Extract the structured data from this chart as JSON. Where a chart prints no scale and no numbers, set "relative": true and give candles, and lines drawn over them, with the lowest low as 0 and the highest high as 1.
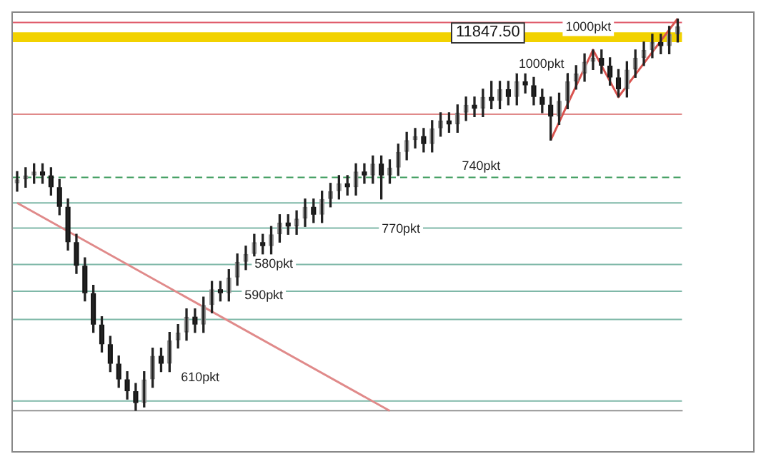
{
  "chart_data": {
    "type": "candlestick",
    "relative": true,
    "grid": false,
    "legend": false,
    "categories": [
      null,
      null,
      null,
      null,
      null,
      null,
      null,
      null,
      null,
      null,
      null,
      null,
      null,
      null,
      null,
      null,
      null,
      null,
      null,
      null,
      null,
      null,
      null,
      null,
      null,
      null,
      null,
      null,
      null,
      null,
      null,
      null,
      null,
      null,
      null,
      null,
      null,
      null,
      null,
      null,
      null,
      null,
      null,
      null,
      null,
      null,
      null,
      null,
      null,
      null,
      null,
      null,
      null,
      null,
      null,
      null,
      null,
      null,
      null,
      null,
      null,
      null,
      null,
      null,
      null,
      null,
      null,
      null,
      null,
      null,
      null,
      null,
      null,
      null,
      null,
      null,
      null,
      null,
      null
    ],
    "ohlc": [
      [
        0.58,
        0.61,
        0.56,
        0.59
      ],
      [
        0.59,
        0.62,
        0.57,
        0.6
      ],
      [
        0.6,
        0.63,
        0.58,
        0.61
      ],
      [
        0.61,
        0.63,
        0.58,
        0.6
      ],
      [
        0.6,
        0.62,
        0.55,
        0.57
      ],
      [
        0.57,
        0.59,
        0.5,
        0.52
      ],
      [
        0.52,
        0.54,
        0.41,
        0.43
      ],
      [
        0.43,
        0.45,
        0.35,
        0.37
      ],
      [
        0.37,
        0.39,
        0.28,
        0.3
      ],
      [
        0.3,
        0.32,
        0.2,
        0.22
      ],
      [
        0.22,
        0.24,
        0.15,
        0.17
      ],
      [
        0.17,
        0.19,
        0.1,
        0.12
      ],
      [
        0.12,
        0.14,
        0.06,
        0.08
      ],
      [
        0.08,
        0.1,
        0.03,
        0.05
      ],
      [
        0.05,
        0.07,
        0.0,
        0.02
      ],
      [
        0.02,
        0.1,
        0.01,
        0.08
      ],
      [
        0.08,
        0.16,
        0.06,
        0.14
      ],
      [
        0.14,
        0.16,
        0.1,
        0.12
      ],
      [
        0.12,
        0.2,
        0.1,
        0.18
      ],
      [
        0.18,
        0.22,
        0.16,
        0.2
      ],
      [
        0.2,
        0.26,
        0.18,
        0.24
      ],
      [
        0.24,
        0.26,
        0.2,
        0.22
      ],
      [
        0.22,
        0.29,
        0.2,
        0.27
      ],
      [
        0.27,
        0.33,
        0.25,
        0.31
      ],
      [
        0.31,
        0.33,
        0.28,
        0.3
      ],
      [
        0.3,
        0.36,
        0.28,
        0.34
      ],
      [
        0.34,
        0.4,
        0.32,
        0.38
      ],
      [
        0.38,
        0.42,
        0.36,
        0.4
      ],
      [
        0.4,
        0.45,
        0.38,
        0.43
      ],
      [
        0.43,
        0.45,
        0.4,
        0.42
      ],
      [
        0.42,
        0.47,
        0.4,
        0.45
      ],
      [
        0.45,
        0.5,
        0.43,
        0.48
      ],
      [
        0.48,
        0.5,
        0.45,
        0.47
      ],
      [
        0.47,
        0.51,
        0.45,
        0.49
      ],
      [
        0.49,
        0.54,
        0.47,
        0.52
      ],
      [
        0.52,
        0.54,
        0.48,
        0.5
      ],
      [
        0.5,
        0.56,
        0.48,
        0.54
      ],
      [
        0.54,
        0.58,
        0.52,
        0.56
      ],
      [
        0.56,
        0.6,
        0.54,
        0.58
      ],
      [
        0.58,
        0.6,
        0.55,
        0.57
      ],
      [
        0.57,
        0.63,
        0.55,
        0.61
      ],
      [
        0.61,
        0.63,
        0.58,
        0.6
      ],
      [
        0.6,
        0.65,
        0.58,
        0.63
      ],
      [
        0.63,
        0.65,
        0.54,
        0.6
      ],
      [
        0.6,
        0.64,
        0.58,
        0.62
      ],
      [
        0.62,
        0.68,
        0.6,
        0.66
      ],
      [
        0.66,
        0.71,
        0.64,
        0.69
      ],
      [
        0.69,
        0.72,
        0.67,
        0.7
      ],
      [
        0.7,
        0.72,
        0.66,
        0.68
      ],
      [
        0.68,
        0.74,
        0.66,
        0.72
      ],
      [
        0.72,
        0.76,
        0.7,
        0.74
      ],
      [
        0.74,
        0.76,
        0.71,
        0.73
      ],
      [
        0.73,
        0.78,
        0.71,
        0.76
      ],
      [
        0.76,
        0.8,
        0.74,
        0.78
      ],
      [
        0.78,
        0.8,
        0.75,
        0.77
      ],
      [
        0.77,
        0.82,
        0.75,
        0.8
      ],
      [
        0.8,
        0.84,
        0.77,
        0.79
      ],
      [
        0.79,
        0.84,
        0.77,
        0.82
      ],
      [
        0.82,
        0.84,
        0.78,
        0.8
      ],
      [
        0.8,
        0.86,
        0.78,
        0.84
      ],
      [
        0.84,
        0.86,
        0.81,
        0.83
      ],
      [
        0.83,
        0.85,
        0.78,
        0.8
      ],
      [
        0.8,
        0.82,
        0.76,
        0.78
      ],
      [
        0.78,
        0.8,
        0.69,
        0.75
      ],
      [
        0.75,
        0.81,
        0.73,
        0.79
      ],
      [
        0.79,
        0.86,
        0.77,
        0.84
      ],
      [
        0.84,
        0.88,
        0.82,
        0.86
      ],
      [
        0.86,
        0.91,
        0.84,
        0.89
      ],
      [
        0.89,
        0.92,
        0.87,
        0.9
      ],
      [
        0.9,
        0.92,
        0.86,
        0.88
      ],
      [
        0.88,
        0.9,
        0.83,
        0.85
      ],
      [
        0.85,
        0.87,
        0.8,
        0.82
      ],
      [
        0.82,
        0.89,
        0.8,
        0.87
      ],
      [
        0.87,
        0.92,
        0.85,
        0.9
      ],
      [
        0.9,
        0.94,
        0.88,
        0.92
      ],
      [
        0.92,
        0.96,
        0.9,
        0.94
      ],
      [
        0.94,
        0.96,
        0.91,
        0.93
      ],
      [
        0.93,
        0.98,
        0.91,
        0.96
      ],
      [
        0.96,
        1.0,
        0.94,
        0.98
      ]
    ],
    "series": [
      {
        "type": "line",
        "color": "#d9534f",
        "values": [
          null,
          null,
          null,
          null,
          null,
          null,
          null,
          null,
          null,
          null,
          null,
          null,
          null,
          null,
          null,
          null,
          null,
          null,
          null,
          null,
          null,
          null,
          null,
          null,
          null,
          null,
          null,
          null,
          null,
          null,
          null,
          null,
          null,
          null,
          null,
          null,
          null,
          null,
          null,
          null,
          null,
          null,
          null,
          null,
          null,
          null,
          null,
          null,
          null,
          null,
          null,
          null,
          null,
          null,
          null,
          null,
          null,
          null,
          null,
          null,
          null,
          null,
          null,
          0.69,
          null,
          null,
          null,
          null,
          0.92,
          null,
          null,
          0.8,
          null,
          null,
          null,
          null,
          null,
          null,
          1.0
        ]
      },
      {
        "type": "line",
        "color": "#e08a8a",
        "values": [
          0.53,
          null,
          null,
          null,
          null,
          null,
          null,
          null,
          null,
          null,
          null,
          null,
          null,
          null,
          null,
          null,
          null,
          null,
          null,
          null,
          null,
          null,
          null,
          null,
          null,
          null,
          null,
          null,
          null,
          null,
          null,
          null,
          null,
          null,
          null,
          null,
          null,
          null,
          null,
          null,
          null,
          null,
          null,
          null,
          0.0,
          null,
          null,
          null,
          null,
          null,
          null,
          null,
          null,
          null,
          null,
          null,
          null,
          null,
          null,
          null,
          null,
          null,
          null,
          null,
          null,
          null,
          null,
          null,
          null,
          null,
          null,
          null,
          null,
          null,
          null,
          null,
          null,
          null,
          null
        ]
      }
    ],
    "ref_lines": [
      {
        "axis": "y",
        "value": 0.99,
        "color": "#e05c6c",
        "line_style": "solid"
      },
      {
        "axis": "y",
        "value": 0.756,
        "color": "#e08a8a",
        "line_style": "solid"
      },
      {
        "axis": "y",
        "value": 0.595,
        "color": "#3a9a5a",
        "line_style": "dashed"
      },
      {
        "axis": "y",
        "value": 0.53,
        "color": "#7fb8a8",
        "line_style": "solid"
      },
      {
        "axis": "y",
        "value": 0.466,
        "color": "#7fb8a8",
        "line_style": "solid"
      },
      {
        "axis": "y",
        "value": 0.373,
        "color": "#7fb8a8",
        "line_style": "solid"
      },
      {
        "axis": "y",
        "value": 0.305,
        "color": "#7fb8a8",
        "line_style": "solid"
      },
      {
        "axis": "y",
        "value": 0.233,
        "color": "#7fb8a8",
        "line_style": "solid"
      },
      {
        "axis": "y",
        "value": 0.025,
        "color": "#7fb8a8",
        "line_style": "solid"
      }
    ],
    "bands": [
      {
        "axis": "y",
        "from": 0.94,
        "to": 0.965,
        "color": "#f2d200"
      }
    ],
    "annotations": [
      "11847.50",
      "1000pkt",
      "1000pkt",
      "740pkt",
      "770pkt",
      "580pkt",
      "590pkt",
      "610pkt"
    ]
  }
}
